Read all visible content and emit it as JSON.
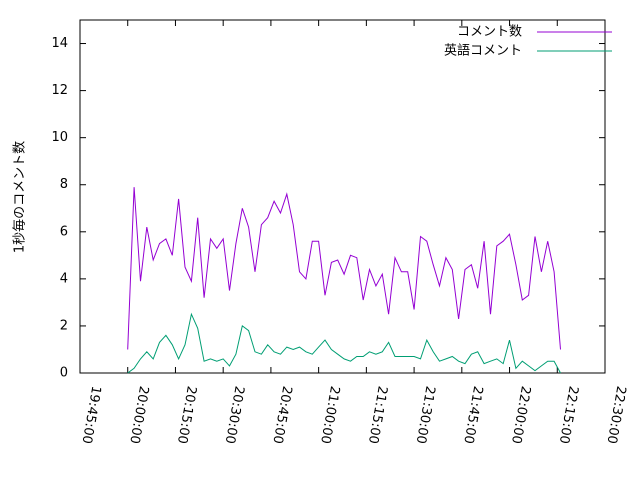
{
  "chart_data": {
    "type": "line",
    "y_label": "1秒毎のコメント数",
    "x": [
      "20:00:00",
      "20:02:00",
      "20:04:00",
      "20:06:00",
      "20:08:00",
      "20:10:00",
      "20:12:00",
      "20:14:00",
      "20:16:00",
      "20:18:00",
      "20:20:00",
      "20:22:00",
      "20:24:00",
      "20:26:00",
      "20:28:00",
      "20:30:00",
      "20:32:00",
      "20:34:00",
      "20:36:00",
      "20:38:00",
      "20:40:00",
      "20:42:00",
      "20:44:00",
      "20:46:00",
      "20:48:00",
      "20:50:00",
      "20:52:00",
      "20:54:00",
      "20:56:00",
      "20:58:00",
      "21:00:00",
      "21:02:00",
      "21:04:00",
      "21:06:00",
      "21:08:00",
      "21:10:00",
      "21:12:00",
      "21:14:00",
      "21:16:00",
      "21:18:00",
      "21:20:00",
      "21:22:00",
      "21:24:00",
      "21:26:00",
      "21:28:00",
      "21:30:00",
      "21:32:00",
      "21:34:00",
      "21:36:00",
      "21:38:00",
      "21:40:00",
      "21:42:00",
      "21:44:00",
      "21:46:00",
      "21:48:00",
      "21:50:00",
      "21:52:00",
      "21:54:00",
      "21:56:00",
      "21:58:00",
      "22:00:00",
      "22:02:00",
      "22:04:00",
      "22:06:00",
      "22:08:00",
      "22:10:00",
      "22:12:00",
      "22:14:00",
      "22:16:00"
    ],
    "series": [
      {
        "name": "コメント数",
        "color": "#9400d3",
        "values": [
          1.0,
          7.9,
          3.9,
          6.2,
          4.8,
          5.5,
          5.7,
          5.0,
          7.4,
          4.5,
          3.9,
          6.6,
          3.2,
          5.7,
          5.3,
          5.7,
          3.5,
          5.5,
          7.0,
          6.2,
          4.3,
          6.3,
          6.6,
          7.3,
          6.8,
          7.6,
          6.3,
          4.3,
          4.0,
          5.6,
          5.6,
          3.3,
          4.7,
          4.8,
          4.2,
          5.0,
          4.9,
          3.1,
          4.4,
          3.7,
          4.2,
          2.5,
          4.9,
          4.3,
          4.3,
          2.7,
          5.8,
          5.6,
          4.6,
          3.7,
          4.9,
          4.4,
          2.3,
          4.4,
          4.6,
          3.6,
          5.6,
          2.5,
          5.4,
          5.6,
          5.9,
          4.6,
          3.1,
          3.3,
          5.8,
          4.3,
          5.6,
          4.3,
          1.0
        ]
      },
      {
        "name": "英語コメント",
        "color": "#009e73",
        "values": [
          0.0,
          0.2,
          0.6,
          0.9,
          0.6,
          1.3,
          1.6,
          1.2,
          0.6,
          1.2,
          2.5,
          1.9,
          0.5,
          0.6,
          0.5,
          0.6,
          0.3,
          0.8,
          2.0,
          1.8,
          0.9,
          0.8,
          1.2,
          0.9,
          0.8,
          1.1,
          1.0,
          1.1,
          0.9,
          0.8,
          1.1,
          1.4,
          1.0,
          0.8,
          0.6,
          0.5,
          0.7,
          0.7,
          0.9,
          0.8,
          0.9,
          1.3,
          0.7,
          0.7,
          0.7,
          0.7,
          0.6,
          1.4,
          0.9,
          0.5,
          0.6,
          0.7,
          0.5,
          0.4,
          0.8,
          0.9,
          0.4,
          0.5,
          0.6,
          0.4,
          1.4,
          0.2,
          0.5,
          0.3,
          0.1,
          0.3,
          0.5,
          0.5,
          0.0
        ]
      }
    ],
    "xlim": [
      "19:45:00",
      "22:30:00"
    ],
    "xticks": [
      "19:45:00",
      "20:00:00",
      "20:15:00",
      "20:30:00",
      "20:45:00",
      "21:00:00",
      "21:15:00",
      "21:30:00",
      "21:45:00",
      "22:00:00",
      "22:15:00",
      "22:30:00"
    ],
    "ylim": [
      0,
      15
    ],
    "yticks": [
      0,
      2,
      4,
      6,
      8,
      10,
      12,
      14
    ],
    "legend": "top-right"
  }
}
